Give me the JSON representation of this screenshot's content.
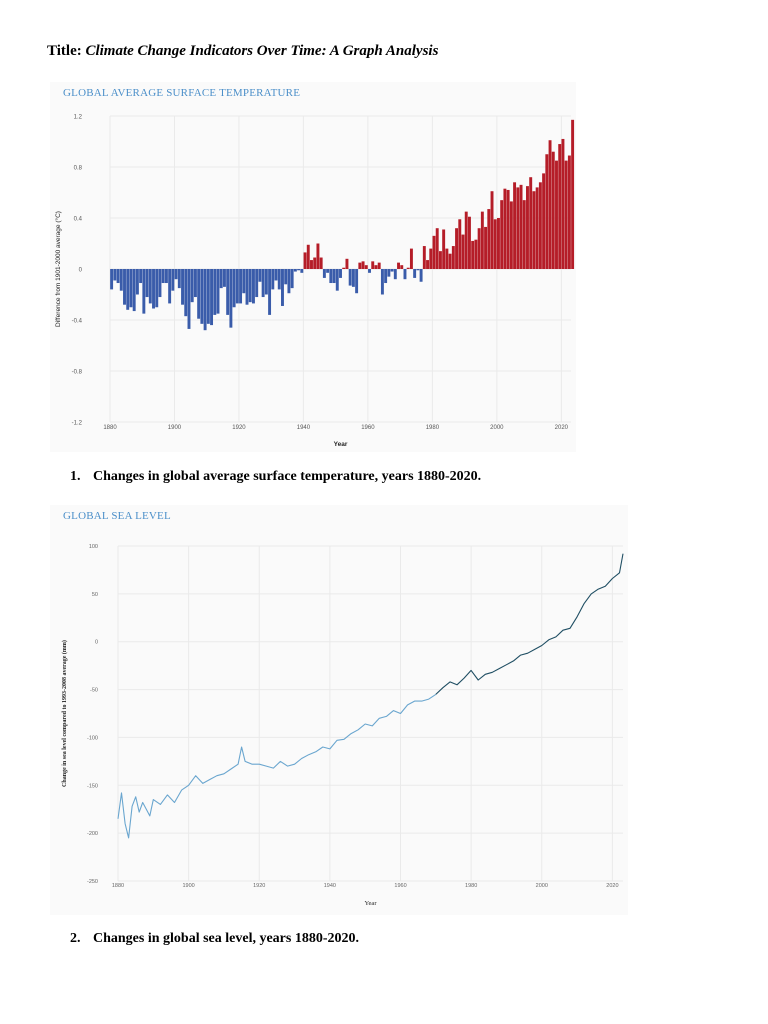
{
  "document": {
    "title_prefix": "Title:",
    "title_text": "Climate Change Indicators Over Time: A Graph Analysis"
  },
  "figures": [
    {
      "heading": "GLOBAL AVERAGE SURFACE TEMPERATURE",
      "caption_number": "1.",
      "caption_text": "Changes in global average surface temperature, years 1880-2020."
    },
    {
      "heading": "GLOBAL SEA LEVEL",
      "caption_number": "2.",
      "caption_text": "Changes in global sea level, years 1880-2020."
    }
  ],
  "colors": {
    "positive_bar": "#b51d28",
    "negative_bar": "#3a5caa",
    "sea_level_early": "#6aa6cf",
    "sea_level_late": "#1f4e63",
    "heading": "#4b8fc9",
    "grid": "#eaeaea"
  },
  "chart_data": [
    {
      "type": "bar",
      "title": "GLOBAL AVERAGE SURFACE TEMPERATURE",
      "xlabel": "Year",
      "ylabel": "Difference from 1901-2000 average (°C)",
      "xlim": [
        1880,
        2023
      ],
      "ylim": [
        -1.2,
        1.2
      ],
      "x_ticks": [
        "1880",
        "1900",
        "1920",
        "1940",
        "1960",
        "1980",
        "2000",
        "2020"
      ],
      "y_ticks": [
        "1.2",
        "0.8",
        "0.4",
        "0",
        "-0.4",
        "-0.8",
        "-1.2"
      ],
      "grid": true,
      "legend": "none",
      "series": [
        {
          "x_start": 1880,
          "values": [
            -0.16,
            -0.09,
            -0.11,
            -0.17,
            -0.28,
            -0.32,
            -0.3,
            -0.33,
            -0.2,
            -0.11,
            -0.35,
            -0.22,
            -0.27,
            -0.31,
            -0.3,
            -0.22,
            -0.11,
            -0.11,
            -0.27,
            -0.17,
            -0.08,
            -0.15,
            -0.28,
            -0.37,
            -0.47,
            -0.26,
            -0.22,
            -0.39,
            -0.43,
            -0.48,
            -0.43,
            -0.44,
            -0.36,
            -0.35,
            -0.15,
            -0.14,
            -0.36,
            -0.46,
            -0.3,
            -0.27,
            -0.27,
            -0.19,
            -0.28,
            -0.26,
            -0.27,
            -0.22,
            -0.1,
            -0.22,
            -0.2,
            -0.36,
            -0.16,
            -0.09,
            -0.16,
            -0.29,
            -0.12,
            -0.19,
            -0.15,
            -0.02,
            -0.01,
            -0.03,
            0.13,
            0.19,
            0.07,
            0.09,
            0.2,
            0.09,
            -0.07,
            -0.03,
            -0.11,
            -0.11,
            -0.17,
            -0.07,
            0.01,
            0.08,
            -0.13,
            -0.14,
            -0.19,
            0.05,
            0.06,
            0.03,
            -0.03,
            0.06,
            0.03,
            0.05,
            -0.2,
            -0.11,
            -0.06,
            -0.02,
            -0.08,
            0.05,
            0.03,
            -0.08,
            0.01,
            0.16,
            -0.07,
            -0.01,
            -0.1,
            0.18,
            0.07,
            0.16,
            0.26,
            0.32,
            0.14,
            0.31,
            0.16,
            0.12,
            0.18,
            0.32,
            0.39,
            0.27,
            0.45,
            0.41,
            0.22,
            0.23,
            0.32,
            0.45,
            0.33,
            0.47,
            0.61,
            0.39,
            0.4,
            0.54,
            0.63,
            0.62,
            0.53,
            0.68,
            0.64,
            0.66,
            0.54,
            0.65,
            0.72,
            0.61,
            0.64,
            0.68,
            0.75,
            0.9,
            1.01,
            0.92,
            0.85,
            0.98,
            1.02,
            0.85,
            0.89,
            1.17
          ]
        }
      ]
    },
    {
      "type": "line",
      "title": "GLOBAL SEA LEVEL",
      "xlabel": "Year",
      "ylabel": "Change in sea level compared to 1993-2008 average (mm)",
      "xlim": [
        1880,
        2023
      ],
      "ylim": [
        -250,
        100
      ],
      "x_ticks": [
        "1880",
        "1900",
        "1920",
        "1940",
        "1960",
        "1980",
        "2000",
        "2020"
      ],
      "y_ticks": [
        "100",
        "50",
        "0",
        "-50",
        "-100",
        "-150",
        "-200",
        "-250"
      ],
      "grid": true,
      "legend": "none",
      "series": [
        {
          "x": [
            1880,
            1881,
            1882,
            1883,
            1884,
            1885,
            1886,
            1887,
            1888,
            1889,
            1890,
            1892,
            1894,
            1896,
            1898,
            1900,
            1902,
            1904,
            1906,
            1908,
            1910,
            1912,
            1914,
            1915,
            1916,
            1918,
            1920,
            1922,
            1924,
            1926,
            1928,
            1930,
            1932,
            1934,
            1936,
            1938,
            1940,
            1942,
            1944,
            1946,
            1948,
            1950,
            1952,
            1954,
            1956,
            1958,
            1960,
            1962,
            1964,
            1966,
            1968,
            1970
          ],
          "y": [
            -185,
            -158,
            -190,
            -205,
            -172,
            -162,
            -178,
            -168,
            -175,
            -182,
            -165,
            -170,
            -160,
            -168,
            -155,
            -150,
            -140,
            -148,
            -144,
            -140,
            -138,
            -133,
            -128,
            -110,
            -125,
            -128,
            -128,
            -130,
            -132,
            -125,
            -130,
            -128,
            -122,
            -118,
            -115,
            -110,
            -112,
            -103,
            -102,
            -96,
            -92,
            -86,
            -88,
            -80,
            -78,
            -72,
            -75,
            -66,
            -62,
            -62,
            -60,
            -55
          ]
        },
        {
          "x": [
            1970,
            1972,
            1974,
            1976,
            1978,
            1980,
            1982,
            1984,
            1986,
            1988,
            1990,
            1992,
            1994,
            1996,
            1998,
            2000,
            2002,
            2004,
            2006,
            2008,
            2010,
            2012,
            2014,
            2016,
            2018,
            2020,
            2022,
            2023
          ],
          "y": [
            -55,
            -48,
            -42,
            -45,
            -38,
            -30,
            -40,
            -34,
            -32,
            -28,
            -24,
            -20,
            -14,
            -12,
            -8,
            -4,
            2,
            5,
            12,
            14,
            26,
            40,
            50,
            55,
            58,
            66,
            72,
            92
          ]
        }
      ]
    }
  ]
}
